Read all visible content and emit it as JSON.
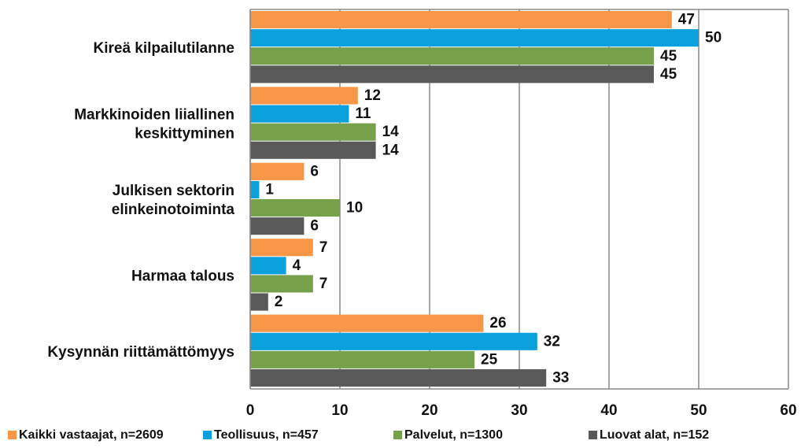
{
  "chart_data": {
    "type": "bar",
    "orientation": "horizontal",
    "categories": [
      "Kireä kilpailutilanne",
      "Markkinoiden liiallinen\nkeskittyminen",
      "Julkisen sektorin\nelinkeinotoiminta",
      "Harmaa talous",
      "Kysynnän riittämättömyys"
    ],
    "series": [
      {
        "name": "Kaikki vastaajat, n=2609",
        "color": "#f79646",
        "values": [
          47,
          12,
          6,
          7,
          26
        ]
      },
      {
        "name": "Teollisuus, n=457",
        "color": "#0aa0dc",
        "values": [
          50,
          11,
          1,
          4,
          32
        ]
      },
      {
        "name": "Palvelut, n=1300",
        "color": "#77a04b",
        "values": [
          45,
          14,
          10,
          7,
          25
        ]
      },
      {
        "name": "Luovat alat, n=152",
        "color": "#595959",
        "values": [
          45,
          14,
          6,
          2,
          33
        ]
      }
    ],
    "xlim": [
      0,
      60
    ],
    "xticks": [
      0,
      10,
      20,
      30,
      40,
      50,
      60
    ],
    "grid": true,
    "legend": "bottom"
  }
}
